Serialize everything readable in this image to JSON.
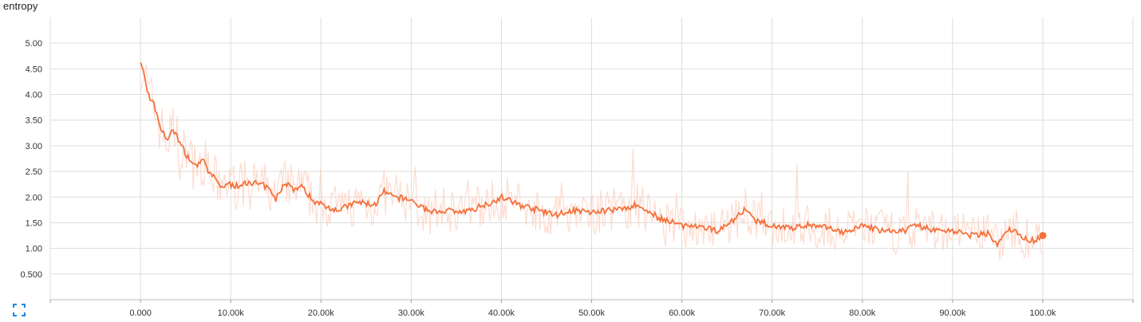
{
  "chart_data": {
    "type": "line",
    "title": "entropy",
    "xlabel": "",
    "ylabel": "",
    "xlim": [
      -10000,
      110000
    ],
    "ylim": [
      0.0,
      5.5
    ],
    "x_ticks": [
      0,
      10000,
      20000,
      30000,
      40000,
      50000,
      60000,
      70000,
      80000,
      90000,
      100000
    ],
    "x_tick_labels": [
      "0.000",
      "10.00k",
      "20.00k",
      "30.00k",
      "40.00k",
      "50.00k",
      "60.00k",
      "70.00k",
      "80.00k",
      "90.00k",
      "100.0k"
    ],
    "y_ticks": [
      0.5,
      1.0,
      1.5,
      2.0,
      2.5,
      3.0,
      3.5,
      4.0,
      4.5,
      5.0
    ],
    "y_tick_labels": [
      "0.500",
      "1.00",
      "1.50",
      "2.00",
      "2.50",
      "3.00",
      "3.50",
      "4.00",
      "4.50",
      "5.00"
    ],
    "grid": true,
    "colors": {
      "smoothed": "#f5703b",
      "raw": "#fbd3c4",
      "grid": "#dddddd",
      "accent": "#1e88e5"
    },
    "series": [
      {
        "style": "smoothed",
        "x": [
          0,
          500,
          1000,
          1500,
          2000,
          2500,
          3000,
          3500,
          4000,
          4500,
          5000,
          6000,
          7000,
          7500,
          8000,
          9000,
          10000,
          11000,
          12000,
          13000,
          14000,
          15000,
          16000,
          17000,
          18000,
          19000,
          20000,
          22000,
          24000,
          26000,
          27000,
          28000,
          30000,
          32000,
          34000,
          36000,
          38000,
          39000,
          40000,
          42000,
          44000,
          46000,
          48000,
          50000,
          52000,
          54000,
          55000,
          56000,
          58000,
          60000,
          62000,
          64000,
          66000,
          67000,
          68000,
          70000,
          72000,
          74000,
          76000,
          78000,
          80000,
          82000,
          84000,
          86000,
          88000,
          90000,
          92000,
          94000,
          95000,
          96000,
          97000,
          98000,
          99000,
          100000
        ],
        "y": [
          4.65,
          4.3,
          3.9,
          3.8,
          3.45,
          3.25,
          3.1,
          3.3,
          3.2,
          3.0,
          2.85,
          2.6,
          2.7,
          2.5,
          2.4,
          2.2,
          2.25,
          2.2,
          2.3,
          2.25,
          2.2,
          1.95,
          2.3,
          2.15,
          2.2,
          1.95,
          1.85,
          1.75,
          1.9,
          1.85,
          2.1,
          2.0,
          1.95,
          1.7,
          1.75,
          1.7,
          1.85,
          1.9,
          2.0,
          1.85,
          1.75,
          1.65,
          1.75,
          1.7,
          1.75,
          1.8,
          1.85,
          1.75,
          1.55,
          1.45,
          1.4,
          1.35,
          1.6,
          1.75,
          1.55,
          1.45,
          1.4,
          1.45,
          1.4,
          1.3,
          1.45,
          1.35,
          1.3,
          1.45,
          1.35,
          1.35,
          1.25,
          1.3,
          1.05,
          1.35,
          1.35,
          1.2,
          1.15,
          1.25
        ]
      }
    ]
  },
  "toolbar": {
    "expand_icon": "expand-icon"
  }
}
